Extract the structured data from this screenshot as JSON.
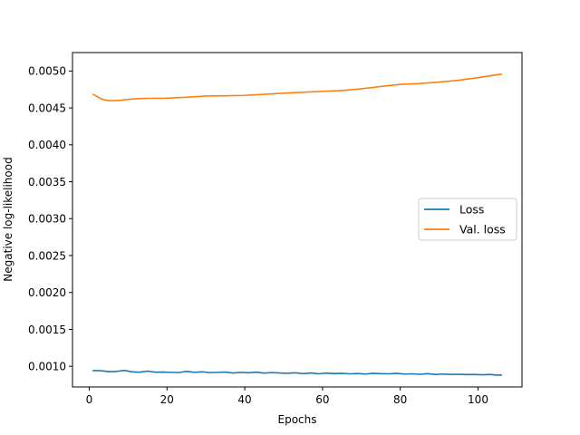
{
  "chart_data": {
    "type": "line",
    "title": "",
    "xlabel": "Epochs",
    "ylabel": "Negative log-likelihood",
    "xlim": [
      -4.3,
      111.3
    ],
    "ylim": [
      0.00072,
      0.00525
    ],
    "xticks": [
      0,
      20,
      40,
      60,
      80,
      100
    ],
    "xtick_labels": [
      "0",
      "20",
      "40",
      "60",
      "80",
      "100"
    ],
    "yticks": [
      0.001,
      0.0015,
      0.002,
      0.0025,
      0.003,
      0.0035,
      0.004,
      0.0045,
      0.005
    ],
    "ytick_labels": [
      "0.0010",
      "0.0015",
      "0.0020",
      "0.0025",
      "0.0030",
      "0.0035",
      "0.0040",
      "0.0045",
      "0.0050"
    ],
    "grid": false,
    "legend_position": "center-right",
    "series": [
      {
        "name": "Loss",
        "color": "#1f77b4",
        "x": [
          1,
          3,
          5,
          7,
          9,
          11,
          13,
          15,
          17,
          19,
          21,
          23,
          25,
          27,
          29,
          31,
          33,
          35,
          37,
          39,
          41,
          43,
          45,
          47,
          49,
          51,
          53,
          55,
          57,
          59,
          61,
          63,
          65,
          67,
          69,
          71,
          73,
          75,
          77,
          79,
          81,
          83,
          85,
          87,
          89,
          91,
          93,
          95,
          97,
          99,
          101,
          103,
          105,
          106
        ],
        "y": [
          0.000942,
          0.00094,
          0.000928,
          0.00093,
          0.000945,
          0.000925,
          0.00092,
          0.000935,
          0.00092,
          0.000922,
          0.000918,
          0.000915,
          0.000932,
          0.000918,
          0.000925,
          0.000915,
          0.000918,
          0.000922,
          0.00091,
          0.000918,
          0.000912,
          0.00092,
          0.000908,
          0.000915,
          0.00091,
          0.000905,
          0.000912,
          0.0009,
          0.00091,
          0.000898,
          0.000908,
          0.000902,
          0.000905,
          0.000898,
          0.000902,
          0.000895,
          0.000905,
          0.0009,
          0.000898,
          0.000905,
          0.000895,
          0.000898,
          0.000892,
          0.0009,
          0.00089,
          0.000895,
          0.00089,
          0.000892,
          0.000888,
          0.00089,
          0.000885,
          0.00089,
          0.00088,
          0.000882
        ]
      },
      {
        "name": "Val. loss",
        "color": "#ff7f0e",
        "x": [
          1,
          2,
          3,
          4,
          5,
          6,
          8,
          10,
          12,
          15,
          20,
          25,
          30,
          35,
          40,
          45,
          50,
          55,
          60,
          65,
          70,
          75,
          80,
          85,
          90,
          95,
          100,
          103,
          106
        ],
        "y": [
          0.004685,
          0.004655,
          0.004625,
          0.004608,
          0.0046,
          0.004598,
          0.004603,
          0.004615,
          0.004625,
          0.00463,
          0.004632,
          0.004645,
          0.004662,
          0.004665,
          0.00467,
          0.004685,
          0.0047,
          0.004712,
          0.004725,
          0.004735,
          0.00476,
          0.00479,
          0.00482,
          0.00483,
          0.00485,
          0.004875,
          0.00491,
          0.004935,
          0.004958
        ]
      }
    ]
  }
}
